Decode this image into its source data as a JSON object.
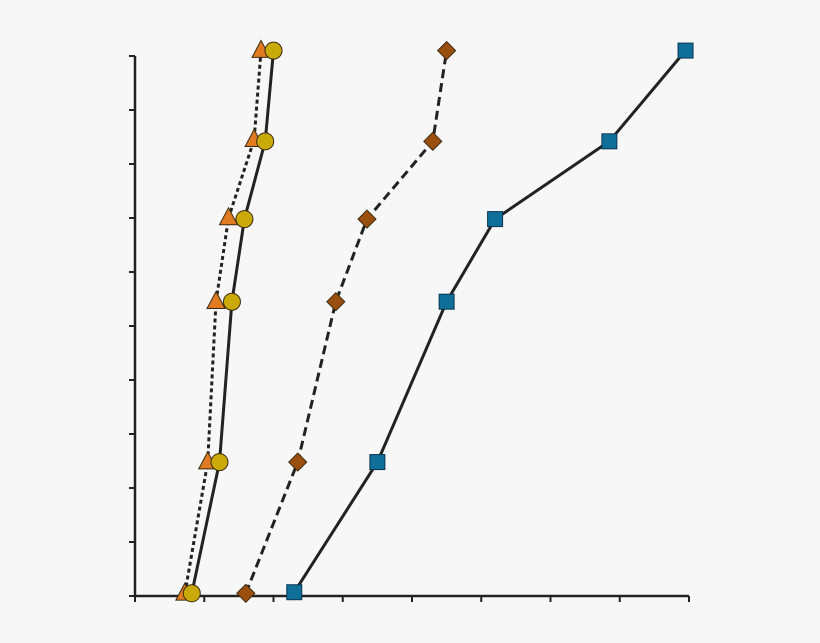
{
  "chart_data": {
    "type": "scatter",
    "background": "#f7f7f7",
    "axis_color": "#222222",
    "grid": false,
    "legend": "none",
    "title": "",
    "xlabel": "",
    "ylabel": "",
    "xlim": [
      0,
      8
    ],
    "ylim": [
      0,
      10
    ],
    "x_ticks": [
      0,
      1,
      2,
      3,
      4,
      5,
      6,
      7,
      8
    ],
    "y_ticks": [
      0,
      1,
      2,
      3,
      4,
      5,
      6,
      7,
      8,
      9,
      10
    ],
    "series": [
      {
        "marker": "triangle",
        "color": "#e07b22",
        "line": "dotted",
        "points": [
          [
            0.72,
            0.05
          ],
          [
            1.05,
            2.48
          ],
          [
            1.17,
            5.45
          ],
          [
            1.35,
            7.0
          ],
          [
            1.72,
            8.45
          ],
          [
            1.82,
            10.1
          ]
        ]
      },
      {
        "marker": "circle",
        "color": "#c9aa08",
        "line": "solid",
        "points": [
          [
            0.82,
            0.05
          ],
          [
            1.22,
            2.48
          ],
          [
            1.4,
            5.45
          ],
          [
            1.58,
            6.98
          ],
          [
            1.88,
            8.42
          ],
          [
            2.0,
            10.1
          ]
        ]
      },
      {
        "marker": "diamond",
        "color": "#9a4f0f",
        "line": "dashed",
        "points": [
          [
            1.6,
            0.05
          ],
          [
            2.35,
            2.48
          ],
          [
            2.9,
            5.45
          ],
          [
            3.35,
            6.98
          ],
          [
            4.3,
            8.42
          ],
          [
            4.5,
            10.1
          ]
        ]
      },
      {
        "marker": "square",
        "color": "#0f6f98",
        "line": "solid",
        "points": [
          [
            2.3,
            0.07
          ],
          [
            3.5,
            2.48
          ],
          [
            4.5,
            5.45
          ],
          [
            5.2,
            6.98
          ],
          [
            6.85,
            8.42
          ],
          [
            7.95,
            10.1
          ]
        ]
      }
    ]
  }
}
